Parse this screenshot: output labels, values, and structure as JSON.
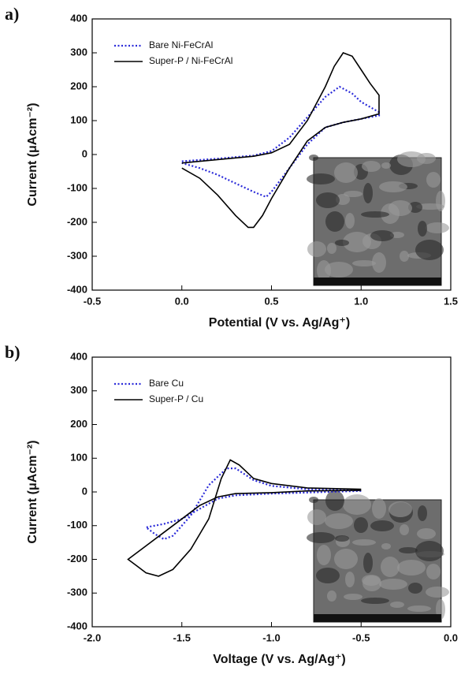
{
  "chart_data": [
    {
      "type": "line",
      "panel_label": "a)",
      "xlabel": "Potential (V vs. Ag/Ag⁺)",
      "ylabel": "Current (μAcm⁻²)",
      "xlim": [
        -0.5,
        1.5
      ],
      "xticks": [
        -0.5,
        {
          "value": 0,
          "label": "0.0"
        },
        0.5,
        {
          "value": 1,
          "label": "1.0"
        },
        1.5
      ],
      "ylim": [
        -400,
        400
      ],
      "yticks": [
        -400,
        -300,
        -200,
        -100,
        0,
        100,
        200,
        300,
        400
      ],
      "legend": "upper left",
      "series": [
        {
          "name": "Bare Ni-FeCrAl",
          "color": "#2b2bd9",
          "linestyle": "dotted",
          "x": [
            0,
            0.2,
            0.4,
            0.5,
            0.6,
            0.7,
            0.8,
            0.88,
            0.95,
            1.0,
            1.1,
            1.1,
            1.0,
            0.9,
            0.8,
            0.7,
            0.6,
            0.5,
            0.47,
            0.4,
            0.3,
            0.2,
            0.1,
            0
          ],
          "values": [
            -20,
            -12,
            -3,
            10,
            50,
            110,
            170,
            200,
            180,
            155,
            125,
            115,
            105,
            95,
            80,
            30,
            -40,
            -110,
            -125,
            -110,
            -85,
            -60,
            -40,
            -25
          ]
        },
        {
          "name": "Super-P / Ni-FeCrAl",
          "color": "#000000",
          "linestyle": "solid",
          "x": [
            0,
            0.2,
            0.4,
            0.5,
            0.6,
            0.7,
            0.8,
            0.85,
            0.9,
            0.95,
            1.0,
            1.05,
            1.1,
            1.1,
            1.0,
            0.9,
            0.8,
            0.7,
            0.6,
            0.5,
            0.45,
            0.4,
            0.37,
            0.3,
            0.2,
            0.1,
            0
          ],
          "values": [
            -25,
            -15,
            -5,
            5,
            30,
            100,
            200,
            260,
            300,
            290,
            250,
            210,
            175,
            120,
            105,
            95,
            80,
            40,
            -40,
            -130,
            -180,
            -215,
            -215,
            -180,
            -120,
            -70,
            -40
          ]
        }
      ]
    },
    {
      "type": "line",
      "panel_label": "b)",
      "xlabel": "Voltage (V vs. Ag/Ag⁺)",
      "ylabel": "Current (μAcm⁻²)",
      "xlim": [
        -2,
        0
      ],
      "xticks": [
        {
          "value": -2,
          "label": "-2.0"
        },
        -1.5,
        {
          "value": -1,
          "label": "-1.0"
        },
        -0.5,
        {
          "value": 0,
          "label": "0.0"
        }
      ],
      "ylim": [
        -400,
        400
      ],
      "yticks": [
        -400,
        -300,
        -200,
        -100,
        0,
        100,
        200,
        300,
        400
      ],
      "legend": "upper left",
      "series": [
        {
          "name": "Bare Cu",
          "color": "#2b2bd9",
          "linestyle": "dotted",
          "x": [
            -0.5,
            -1.0,
            -1.2,
            -1.3,
            -1.4,
            -1.5,
            -1.6,
            -1.7,
            -1.65,
            -1.6,
            -1.55,
            -1.45,
            -1.35,
            -1.25,
            -1.2,
            -1.1,
            -1.0,
            -0.8,
            -0.5
          ],
          "values": [
            3,
            -5,
            -10,
            -20,
            -50,
            -80,
            -95,
            -105,
            -125,
            -140,
            -130,
            -70,
            20,
            70,
            70,
            35,
            18,
            8,
            5
          ]
        },
        {
          "name": "Super-P / Cu",
          "color": "#000000",
          "linestyle": "solid",
          "x": [
            -0.5,
            -0.8,
            -1.0,
            -1.2,
            -1.3,
            -1.4,
            -1.5,
            -1.6,
            -1.7,
            -1.8,
            -1.75,
            -1.7,
            -1.63,
            -1.55,
            -1.45,
            -1.35,
            -1.28,
            -1.23,
            -1.18,
            -1.1,
            -1.0,
            -0.8,
            -0.5
          ],
          "values": [
            5,
            3,
            -2,
            -5,
            -15,
            -40,
            -80,
            -120,
            -160,
            -200,
            -220,
            -240,
            -250,
            -230,
            -170,
            -80,
            40,
            95,
            80,
            40,
            25,
            12,
            8
          ]
        }
      ]
    }
  ]
}
